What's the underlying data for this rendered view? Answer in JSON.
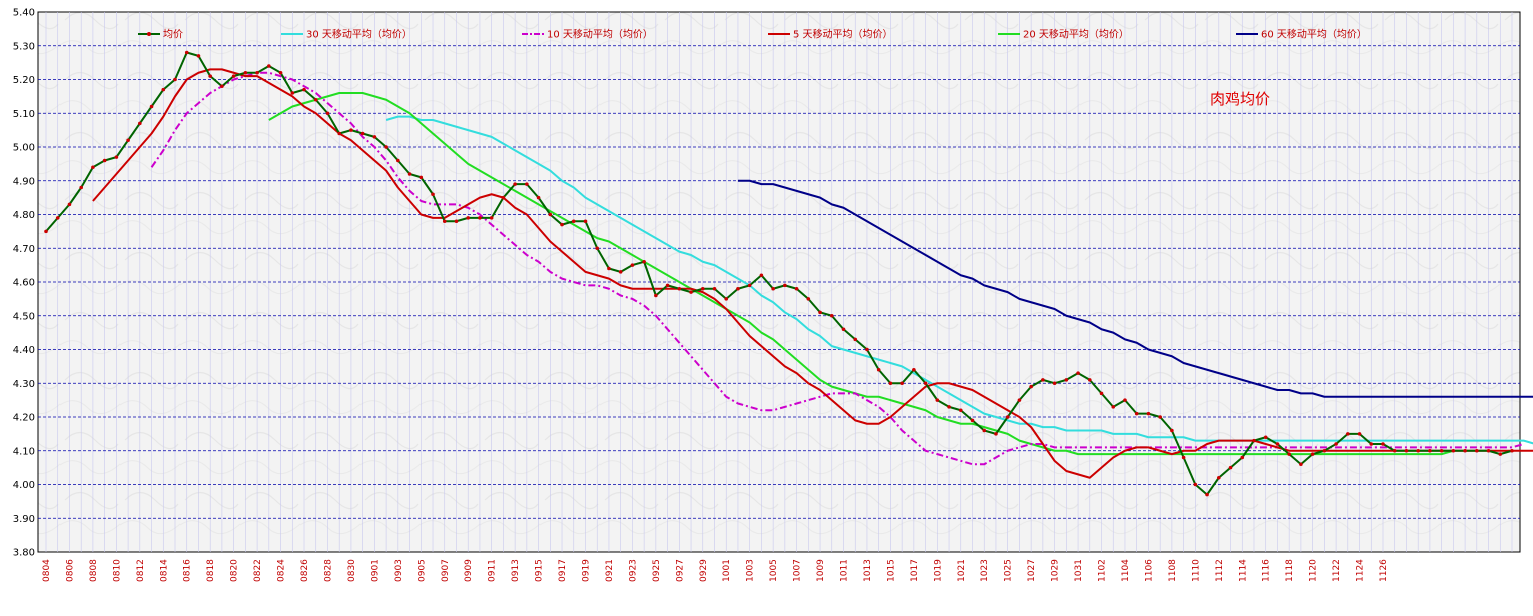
{
  "chart_data": {
    "type": "line",
    "title": "肉鸡均价",
    "xlabel": "",
    "ylabel": "",
    "ylim": [
      3.8,
      5.4
    ],
    "yticks": [
      "3.80",
      "3.90",
      "4.00",
      "4.10",
      "4.20",
      "4.30",
      "4.40",
      "4.50",
      "4.60",
      "4.70",
      "4.80",
      "4.90",
      "5.00",
      "5.10",
      "5.20",
      "5.30",
      "5.40"
    ],
    "x_tick_labels": [
      "0804",
      "0806",
      "0808",
      "0810",
      "0812",
      "0814",
      "0816",
      "0818",
      "0820",
      "0822",
      "0824",
      "0826",
      "0828",
      "0830",
      "0901",
      "0903",
      "0905",
      "0907",
      "0909",
      "0911",
      "0913",
      "0915",
      "0917",
      "0919",
      "0921",
      "0923",
      "0925",
      "0927",
      "0929",
      "1001",
      "1003",
      "1005",
      "1007",
      "1009",
      "1011",
      "1013",
      "1015",
      "1017",
      "1019",
      "1021",
      "1023",
      "1025",
      "1027",
      "1029",
      "1031",
      "1102",
      "1104",
      "1106",
      "1108",
      "1110",
      "1112",
      "1114",
      "1116",
      "1118",
      "1120",
      "1122",
      "1124",
      "1126"
    ],
    "grid": true,
    "legend_position": "top",
    "series": [
      {
        "name": "均价",
        "color": "#006400",
        "marker_color": "#cc0000",
        "values": [
          4.75,
          4.79,
          4.83,
          4.88,
          4.94,
          4.96,
          4.97,
          5.02,
          5.07,
          5.12,
          5.17,
          5.2,
          5.28,
          5.27,
          5.21,
          5.18,
          5.21,
          5.22,
          5.22,
          5.24,
          5.22,
          5.16,
          5.17,
          5.14,
          5.1,
          5.04,
          5.05,
          5.04,
          5.03,
          5.0,
          4.96,
          4.92,
          4.91,
          4.86,
          4.78,
          4.78,
          4.79,
          4.79,
          4.79,
          4.85,
          4.89,
          4.89,
          4.85,
          4.8,
          4.77,
          4.78,
          4.78,
          4.7,
          4.64,
          4.63,
          4.65,
          4.66,
          4.56,
          4.59,
          4.58,
          4.57,
          4.58,
          4.58,
          4.55,
          4.58,
          4.59,
          4.62,
          4.58,
          4.59,
          4.58,
          4.55,
          4.51,
          4.5,
          4.46,
          4.43,
          4.4,
          4.34,
          4.3,
          4.3,
          4.34,
          4.3,
          4.25,
          4.23,
          4.22,
          4.19,
          4.16,
          4.15,
          4.2,
          4.25,
          4.29,
          4.31,
          4.3,
          4.31,
          4.33,
          4.31,
          4.27,
          4.23,
          4.25,
          4.21,
          4.21,
          4.2,
          4.16,
          4.08,
          4.0,
          3.97,
          4.02,
          4.05,
          4.08,
          4.13,
          4.14,
          4.12,
          4.09,
          4.06,
          4.09,
          4.1,
          4.12,
          4.15,
          4.15,
          4.12,
          4.12,
          4.1,
          4.1,
          4.1,
          4.1,
          4.1,
          4.1,
          4.1,
          4.1,
          4.1,
          4.09,
          4.1
        ]
      },
      {
        "name": "30 天移动平均（均价）",
        "color": "#33dddd",
        "start_index": 29,
        "values": [
          5.08,
          5.09,
          5.09,
          5.08,
          5.08,
          5.07,
          5.06,
          5.05,
          5.04,
          5.03,
          5.01,
          4.99,
          4.97,
          4.95,
          4.93,
          4.9,
          4.88,
          4.85,
          4.83,
          4.81,
          4.79,
          4.77,
          4.75,
          4.73,
          4.71,
          4.69,
          4.68,
          4.66,
          4.65,
          4.63,
          4.61,
          4.59,
          4.56,
          4.54,
          4.51,
          4.49,
          4.46,
          4.44,
          4.41,
          4.4,
          4.39,
          4.38,
          4.37,
          4.36,
          4.35,
          4.33,
          4.31,
          4.29,
          4.27,
          4.25,
          4.23,
          4.21,
          4.2,
          4.19,
          4.18,
          4.18,
          4.17,
          4.17,
          4.16,
          4.16,
          4.16,
          4.16,
          4.15,
          4.15,
          4.15,
          4.14,
          4.14,
          4.14,
          4.14,
          4.13,
          4.13,
          4.13,
          4.13,
          4.13,
          4.13,
          4.13,
          4.13,
          4.13,
          4.13,
          4.13,
          4.13,
          4.13,
          4.13,
          4.13,
          4.13,
          4.13,
          4.13,
          4.13,
          4.13,
          4.13,
          4.13,
          4.13,
          4.13,
          4.13,
          4.13,
          4.13,
          4.13,
          4.13,
          4.12
        ]
      },
      {
        "name": "10 天移动平均（均价）",
        "color": "#cc00cc",
        "dashed": true,
        "start_index": 9,
        "values": [
          4.94,
          4.99,
          5.05,
          5.1,
          5.13,
          5.16,
          5.18,
          5.2,
          5.21,
          5.22,
          5.22,
          5.21,
          5.2,
          5.18,
          5.16,
          5.13,
          5.1,
          5.07,
          5.03,
          5.0,
          4.96,
          4.91,
          4.87,
          4.84,
          4.83,
          4.83,
          4.83,
          4.82,
          4.8,
          4.77,
          4.74,
          4.71,
          4.68,
          4.66,
          4.63,
          4.61,
          4.6,
          4.59,
          4.59,
          4.58,
          4.56,
          4.55,
          4.53,
          4.5,
          4.46,
          4.42,
          4.38,
          4.34,
          4.3,
          4.26,
          4.24,
          4.23,
          4.22,
          4.22,
          4.23,
          4.24,
          4.25,
          4.26,
          4.27,
          4.27,
          4.27,
          4.25,
          4.23,
          4.2,
          4.16,
          4.13,
          4.1,
          4.09,
          4.08,
          4.07,
          4.06,
          4.06,
          4.08,
          4.1,
          4.11,
          4.12,
          4.12,
          4.11,
          4.11,
          4.11,
          4.11,
          4.11,
          4.11,
          4.11,
          4.11,
          4.11,
          4.11,
          4.11,
          4.11,
          4.11,
          4.11,
          4.11,
          4.11,
          4.11,
          4.11,
          4.11,
          4.11,
          4.11,
          4.11,
          4.11,
          4.11,
          4.11,
          4.11,
          4.11,
          4.11,
          4.11,
          4.11,
          4.11,
          4.11,
          4.11,
          4.11,
          4.11,
          4.11,
          4.11,
          4.11,
          4.11,
          4.11,
          4.12
        ]
      },
      {
        "name": "5 天移动平均（均价）",
        "color": "#cc0000",
        "start_index": 4,
        "values": [
          4.84,
          4.88,
          4.92,
          4.96,
          5.0,
          5.04,
          5.09,
          5.15,
          5.2,
          5.22,
          5.23,
          5.23,
          5.22,
          5.21,
          5.21,
          5.19,
          5.17,
          5.15,
          5.12,
          5.1,
          5.07,
          5.04,
          5.02,
          4.99,
          4.96,
          4.93,
          4.88,
          4.84,
          4.8,
          4.79,
          4.79,
          4.81,
          4.83,
          4.85,
          4.86,
          4.85,
          4.82,
          4.8,
          4.76,
          4.72,
          4.69,
          4.66,
          4.63,
          4.62,
          4.61,
          4.59,
          4.58,
          4.58,
          4.58,
          4.58,
          4.58,
          4.58,
          4.57,
          4.55,
          4.52,
          4.48,
          4.44,
          4.41,
          4.38,
          4.35,
          4.33,
          4.3,
          4.28,
          4.25,
          4.22,
          4.19,
          4.18,
          4.18,
          4.2,
          4.23,
          4.26,
          4.29,
          4.3,
          4.3,
          4.29,
          4.28,
          4.26,
          4.24,
          4.22,
          4.2,
          4.17,
          4.12,
          4.07,
          4.04,
          4.03,
          4.02,
          4.05,
          4.08,
          4.1,
          4.11,
          4.11,
          4.1,
          4.09,
          4.1,
          4.1,
          4.12,
          4.13,
          4.13,
          4.13,
          4.13,
          4.12,
          4.11,
          4.1,
          4.1,
          4.1,
          4.1,
          4.1,
          4.1,
          4.1,
          4.1,
          4.1,
          4.1,
          4.1,
          4.1,
          4.1,
          4.1,
          4.1,
          4.1,
          4.1,
          4.1,
          4.1,
          4.1,
          4.1,
          4.1
        ]
      },
      {
        "name": "20 天移动平均（均价）",
        "color": "#22dd22",
        "start_index": 19,
        "values": [
          5.08,
          5.1,
          5.12,
          5.13,
          5.14,
          5.15,
          5.16,
          5.16,
          5.16,
          5.15,
          5.14,
          5.12,
          5.1,
          5.07,
          5.04,
          5.01,
          4.98,
          4.95,
          4.93,
          4.91,
          4.89,
          4.87,
          4.85,
          4.83,
          4.81,
          4.79,
          4.77,
          4.75,
          4.73,
          4.72,
          4.7,
          4.68,
          4.66,
          4.64,
          4.62,
          4.6,
          4.58,
          4.56,
          4.54,
          4.52,
          4.5,
          4.48,
          4.45,
          4.43,
          4.4,
          4.37,
          4.34,
          4.31,
          4.29,
          4.28,
          4.27,
          4.26,
          4.26,
          4.25,
          4.24,
          4.23,
          4.22,
          4.2,
          4.19,
          4.18,
          4.18,
          4.17,
          4.16,
          4.15,
          4.13,
          4.12,
          4.11,
          4.1,
          4.1,
          4.09,
          4.09,
          4.09,
          4.09,
          4.09,
          4.09,
          4.09,
          4.09,
          4.09,
          4.09,
          4.09,
          4.09,
          4.09,
          4.09,
          4.09,
          4.09,
          4.09,
          4.09,
          4.09,
          4.09,
          4.09,
          4.09,
          4.09,
          4.09,
          4.09,
          4.09,
          4.09,
          4.09,
          4.09,
          4.09,
          4.09,
          4.09,
          4.1
        ]
      },
      {
        "name": "60 天移动平均（均价）",
        "color": "#000088",
        "start_index": 59,
        "values": [
          4.9,
          4.9,
          4.89,
          4.89,
          4.88,
          4.87,
          4.86,
          4.85,
          4.83,
          4.82,
          4.8,
          4.78,
          4.76,
          4.74,
          4.72,
          4.7,
          4.68,
          4.66,
          4.64,
          4.62,
          4.61,
          4.59,
          4.58,
          4.57,
          4.55,
          4.54,
          4.53,
          4.52,
          4.5,
          4.49,
          4.48,
          4.46,
          4.45,
          4.43,
          4.42,
          4.4,
          4.39,
          4.38,
          4.36,
          4.35,
          4.34,
          4.33,
          4.32,
          4.31,
          4.3,
          4.29,
          4.28,
          4.28,
          4.27,
          4.27,
          4.26,
          4.26,
          4.26,
          4.26,
          4.26,
          4.26,
          4.26,
          4.26,
          4.26,
          4.26,
          4.26,
          4.26,
          4.26,
          4.26,
          4.26,
          4.26,
          4.26,
          4.26,
          4.26,
          4.26,
          4.26,
          4.26,
          4.26,
          4.26,
          4.26,
          4.26,
          4.26,
          4.26,
          4.26,
          4.26,
          4.26,
          4.26,
          4.26,
          4.26,
          4.26,
          4.26,
          4.26,
          4.26,
          4.26,
          4.26,
          4.26,
          4.26,
          4.26,
          4.26,
          4.26,
          4.26
        ]
      }
    ]
  }
}
